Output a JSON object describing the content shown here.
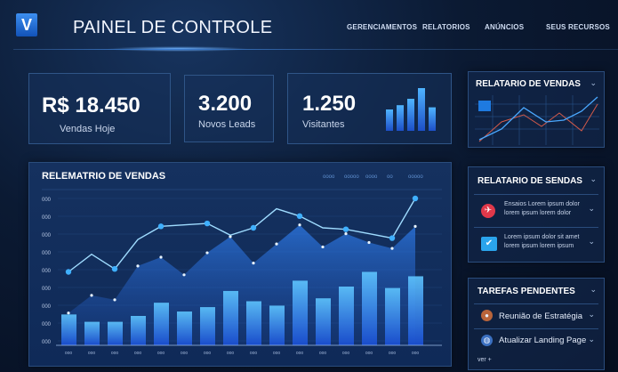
{
  "header": {
    "logo": "V",
    "title": "PAINEL DE CONTROLE",
    "nav": [
      "GERENCIAMENTOS",
      "RELATORIOS",
      "ANÚNCIOS",
      "SEUS RECURSOS"
    ]
  },
  "kpis": [
    {
      "value": "R$ 18.450",
      "label": "Vendas Hoje"
    },
    {
      "value": "3.200",
      "label": "Novos Leads"
    },
    {
      "value": "1.250",
      "label": "Visitantes"
    }
  ],
  "mini_bars": [
    0.5,
    0.6,
    0.75,
    1.0,
    0.55
  ],
  "side_report": {
    "title": "RELATARIO DE VENDAS"
  },
  "side_list": {
    "title": "RELATARIO DE SENDAS",
    "items": [
      {
        "icon": "airplane-icon",
        "color": "#e0384a",
        "text1": "Ensaios Lorem ipsum dolor",
        "text2": "lorem ipsum lorem dolor"
      },
      {
        "icon": "bird-icon",
        "color": "#2aa4ec",
        "text1": "Lorem ipsum dolor sit amet",
        "text2": "lorem ipsum lorem ipsum"
      }
    ]
  },
  "tasks": {
    "title": "TAREFAS PENDENTES",
    "items": [
      {
        "icon": "microphone-icon",
        "label": "Reunião de Estratégia"
      },
      {
        "icon": "globe-icon",
        "label": "Atualizar Landing Page"
      }
    ],
    "footer": "ver +"
  },
  "chart_data": {
    "type": "bar",
    "title": "RELEMATRIO DE VENDAS",
    "legend": [
      "oooo",
      "ooooo",
      "oooo",
      "oo",
      "ooooo"
    ],
    "legend_placement": "top-right",
    "yticks": [
      "000",
      "000",
      "000",
      "000",
      "000",
      "000",
      "000",
      "000",
      "000"
    ],
    "categories": [
      "ooo",
      "ooo",
      "ooo",
      "ooo",
      "ooo",
      "ooo",
      "ooo",
      "ooo",
      "ooo",
      "ooo",
      "ooo",
      "ooo",
      "ooo",
      "ooo",
      "ooo",
      "ooo"
    ],
    "values": [
      21,
      16,
      16,
      20,
      29,
      23,
      26,
      37,
      30,
      27,
      44,
      32,
      40,
      50,
      39,
      47
    ],
    "series": [
      {
        "type": "line",
        "values": [
          50,
          62,
          52,
          72,
          81,
          82,
          83,
          75,
          80,
          93,
          88,
          80,
          79,
          76,
          73,
          100
        ]
      },
      {
        "type": "area",
        "values": [
          22,
          34,
          31,
          54,
          60,
          48,
          63,
          74,
          56,
          69,
          82,
          67,
          76,
          70,
          66,
          81
        ]
      }
    ],
    "grid": true
  }
}
